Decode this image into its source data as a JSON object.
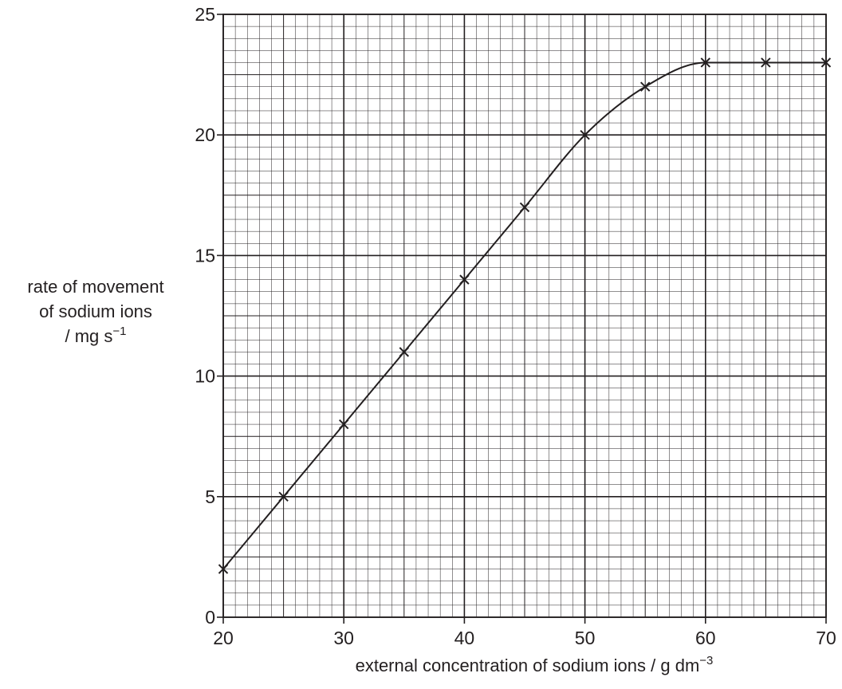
{
  "chart_data": {
    "type": "line",
    "xlabel": "external concentration of sodium ions / g dm",
    "xlabel_exponent": "−3",
    "ylabel_lines": [
      "rate of movement",
      "of sodium ions",
      "/ mg s"
    ],
    "ylabel_exponent": "−1",
    "xlim": [
      20,
      70
    ],
    "ylim": [
      0,
      25
    ],
    "x_ticks": [
      20,
      30,
      40,
      50,
      60,
      70
    ],
    "y_ticks": [
      0,
      5,
      10,
      15,
      20,
      25
    ],
    "grid": true,
    "marker": "x",
    "series": [
      {
        "x": [
          20,
          25,
          30,
          35,
          40,
          45,
          50,
          55,
          60,
          65,
          70
        ],
        "y": [
          2,
          5,
          8,
          11,
          14,
          17,
          20,
          22,
          23,
          23,
          23
        ]
      }
    ]
  }
}
